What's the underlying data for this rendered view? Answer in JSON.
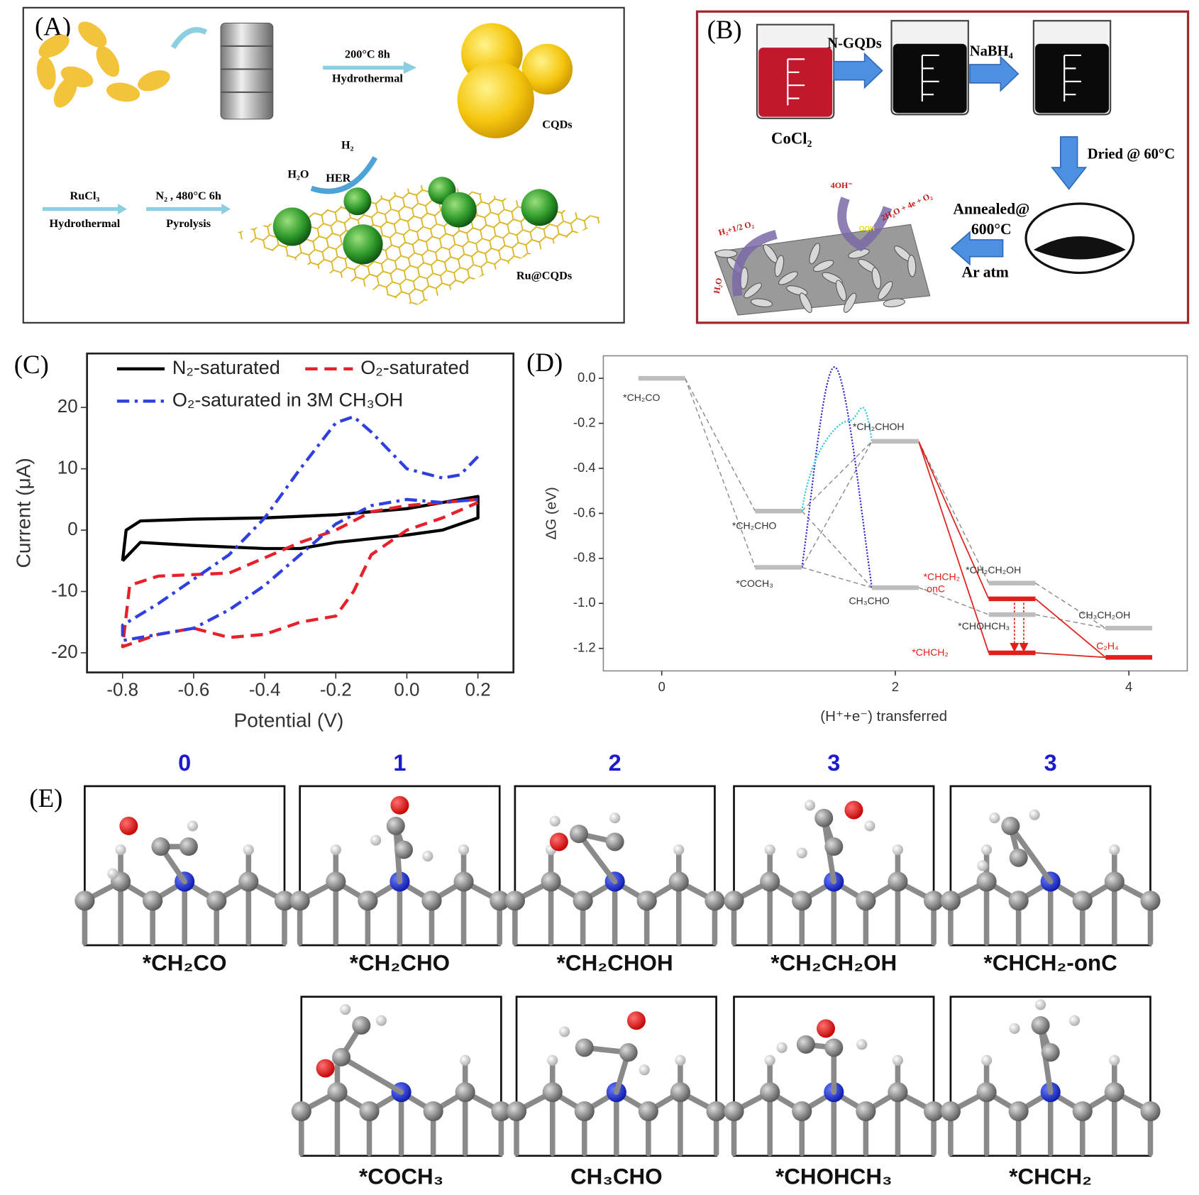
{
  "panel_a": {
    "label": "(A)",
    "step1_top": "200°C 8h",
    "step1_bottom": "Hydrothermal",
    "product1": "CQDs",
    "h2": "H₂",
    "h2o": "H₂O",
    "her": "HER",
    "step2_top": "RuCl₃",
    "step2_bottom": "Hydrothermal",
    "step3_top": "N₂ , 480°C 6h",
    "step3_bottom": "Pyrolysis",
    "product2": "Ru@CQDs"
  },
  "panel_b": {
    "label": "(B)",
    "reagent1": "N-GQDs",
    "reagent2": "NaBH₄",
    "precursor": "CoCl₂",
    "drying": "Dried @ 60°C",
    "annealing": [
      "Annealed@",
      "600°C",
      "Ar atm"
    ],
    "her_label": "H₂+1/2 O₂",
    "oer_in": "4OH⁻",
    "oer_out": "2H₂O + 4e + O₂",
    "water": "H₂O",
    "ooh": "OOH"
  },
  "chart_data": [
    {
      "type": "line",
      "label": "(C)",
      "x_label": "Potential (V)",
      "y_label": "Current (μA)",
      "xlim": [
        -0.9,
        0.3
      ],
      "ylim": [
        -23.2,
        28.8
      ],
      "xticks": [
        -0.8,
        -0.6,
        -0.4,
        -0.2,
        {
          "value": 0,
          "label": "0.0"
        },
        0.2
      ],
      "yticks": [
        -20,
        -10,
        0,
        10,
        20
      ],
      "series": [
        {
          "name": "N₂-saturated",
          "color": "#000000",
          "dash": "solid",
          "x": [
            -0.8,
            -0.79,
            -0.75,
            -0.6,
            -0.4,
            -0.2,
            0,
            0.1,
            0.2,
            0.2,
            0.1,
            0,
            -0.2,
            -0.3,
            -0.4,
            -0.6,
            -0.75,
            -0.8
          ],
          "values": [
            -5,
            0,
            1.5,
            1.8,
            2,
            2.5,
            3.5,
            4.5,
            5.5,
            2,
            0,
            -0.8,
            -2,
            -3,
            -3,
            -2.5,
            -2,
            -5
          ]
        },
        {
          "name": "O₂-saturated",
          "color": "#e8202a",
          "dash": "dash",
          "x": [
            0.2,
            0.1,
            0,
            -0.1,
            -0.2,
            -0.3,
            -0.4,
            -0.5,
            -0.7,
            -0.78,
            -0.8,
            -0.7,
            -0.6,
            -0.5,
            -0.4,
            -0.3,
            -0.2,
            -0.15,
            -0.1,
            0,
            0.1,
            0.2
          ],
          "values": [
            5,
            4.5,
            4,
            3,
            0,
            -2,
            -4.5,
            -7,
            -7.5,
            -9,
            -19,
            -17,
            -16,
            -17.5,
            -17,
            -15,
            -14,
            -10,
            -4,
            0,
            2,
            4.5
          ]
        },
        {
          "name": "O₂-saturated in 3M CH₃OH",
          "color": "#2f3fe0",
          "dash": "dashdot",
          "x": [
            0.2,
            0.15,
            0.1,
            0,
            -0.1,
            -0.15,
            -0.2,
            -0.3,
            -0.4,
            -0.5,
            -0.6,
            -0.7,
            -0.8,
            -0.8,
            -0.6,
            -0.5,
            -0.4,
            -0.3,
            -0.2,
            -0.1,
            0,
            0.1,
            0.2
          ],
          "values": [
            12,
            9,
            8.5,
            10,
            16,
            18.5,
            17.5,
            10,
            2,
            -4,
            -8,
            -12,
            -15.5,
            -18,
            -16,
            -13,
            -9,
            -4,
            1,
            4,
            5,
            4.5,
            5
          ]
        }
      ]
    },
    {
      "type": "energy",
      "label": "(D)",
      "x_label": "(H⁺+e⁻) transferred",
      "y_label": "ΔG (eV)",
      "xlim": [
        -0.5,
        4.5
      ],
      "ylim": [
        -1.3,
        0.1
      ],
      "xticks": [
        0,
        2,
        4
      ],
      "yticks": [
        {
          "value": 0,
          "label": "0.0"
        },
        -0.2,
        -0.4,
        -0.6,
        -0.8,
        {
          "value": -1,
          "label": "-1.0"
        },
        -1.2
      ],
      "levels": [
        {
          "label": "*CH₂CO",
          "x": 0,
          "value": 0,
          "color": "#bdbdbd"
        },
        {
          "label": "*CH₂CHO",
          "x": 1,
          "value": -0.59,
          "color": "#bdbdbd"
        },
        {
          "label": "*COCH₃",
          "x": 1,
          "value": -0.84,
          "color": "#bdbdbd"
        },
        {
          "label": "*CH₂CHOH",
          "x": 2,
          "value": -0.28,
          "color": "#bdbdbd"
        },
        {
          "label": "CH₃CHO",
          "x": 2,
          "value": -0.93,
          "color": "#bdbdbd"
        },
        {
          "label": "*CH₂CH₂OH",
          "x": 3,
          "value": -0.91,
          "color": "#bdbdbd"
        },
        {
          "label": "*CHOHCH₃",
          "x": 3,
          "value": -1.05,
          "color": "#bdbdbd"
        },
        {
          "label": "CH₃CH₂OH",
          "x": 4,
          "value": -1.11,
          "color": "#bdbdbd"
        },
        {
          "label": [
            "*CHCH₂",
            "-onC"
          ],
          "x": 3,
          "value": -0.98,
          "color": "#e0201b"
        },
        {
          "label": "*CHCH₂",
          "x": 3,
          "value": -1.22,
          "color": "#e0201b"
        },
        {
          "label": "C₂H₄",
          "x": 4,
          "value": -1.24,
          "color": "#e0201b"
        }
      ],
      "transition_states": [
        {
          "x": 1.48,
          "value": 0.05,
          "color": "#2b2bd0"
        },
        {
          "x": 1.6,
          "value": -0.19,
          "color": "#2fc8d8"
        }
      ]
    }
  ],
  "panel_e": {
    "label": "(E)",
    "steps": [
      0,
      1,
      2,
      3,
      3
    ],
    "top_names": [
      "*CH₂CO",
      "*CH₂CHO",
      "*CH₂CHOH",
      "*CH₂CH₂OH",
      "*CHCH₂-onC"
    ],
    "bottom_names": [
      "*COCH₃",
      "CH₃CHO",
      "*CHOHCH₃",
      "*CHCH₂"
    ]
  }
}
